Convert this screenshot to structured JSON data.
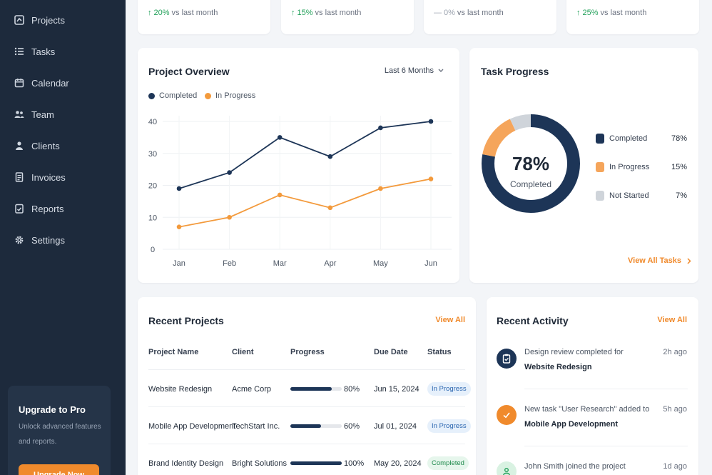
{
  "sidebar": {
    "items": [
      {
        "label": "Projects",
        "icon": "projects-icon"
      },
      {
        "label": "Tasks",
        "icon": "tasks-icon"
      },
      {
        "label": "Calendar",
        "icon": "calendar-icon"
      },
      {
        "label": "Team",
        "icon": "team-icon"
      },
      {
        "label": "Clients",
        "icon": "clients-icon"
      },
      {
        "label": "Invoices",
        "icon": "invoices-icon"
      },
      {
        "label": "Reports",
        "icon": "reports-icon"
      },
      {
        "label": "Settings",
        "icon": "settings-icon"
      }
    ],
    "upgrade": {
      "title": "Upgrade to Pro",
      "text": "Unlock advanced features and reports.",
      "button": "Upgrade Now"
    }
  },
  "stats": [
    {
      "change": "20%",
      "suffix": "vs last month",
      "trend": "up"
    },
    {
      "change": "15%",
      "suffix": "vs last month",
      "trend": "up"
    },
    {
      "change": "0%",
      "suffix": "vs last month",
      "trend": "neutral"
    },
    {
      "change": "25%",
      "suffix": "vs last month",
      "trend": "up"
    }
  ],
  "overview": {
    "title": "Project Overview",
    "range": "Last 6 Months",
    "legend": [
      "Completed",
      "In Progress"
    ]
  },
  "chart_data": {
    "type": "line",
    "x": [
      "Jan",
      "Feb",
      "Mar",
      "Apr",
      "May",
      "Jun"
    ],
    "ylim": [
      0,
      40
    ],
    "yticks": [
      0,
      10,
      20,
      30,
      40
    ],
    "grid": true,
    "legend_position": "top-left",
    "series": [
      {
        "name": "Completed",
        "color": "#1d3557",
        "values": [
          19,
          24,
          35,
          29,
          38,
          40
        ]
      },
      {
        "name": "In Progress",
        "color": "#f39a3c",
        "values": [
          7,
          10,
          17,
          13,
          19,
          22
        ]
      }
    ]
  },
  "task_progress": {
    "title": "Task Progress",
    "center_value": "78%",
    "center_label": "Completed",
    "segments": [
      {
        "label": "Completed",
        "pct": "78%",
        "value": 78,
        "color": "#1d3557"
      },
      {
        "label": "In Progress",
        "pct": "15%",
        "value": 15,
        "color": "#f5a55b"
      },
      {
        "label": "Not Started",
        "pct": "7%",
        "value": 7,
        "color": "#cfd4da"
      }
    ],
    "link": "View All Tasks"
  },
  "recent_projects": {
    "title": "Recent Projects",
    "link": "View All",
    "columns": [
      "Project Name",
      "Client",
      "Progress",
      "Due Date",
      "Status"
    ],
    "rows": [
      {
        "name": "Website Redesign",
        "client": "Acme Corp",
        "progress": "80%",
        "progress_value": 0.8,
        "due": "Jun 15, 2024",
        "status": "In Progress"
      },
      {
        "name": "Mobile App Development",
        "client": "TechStart Inc.",
        "progress": "60%",
        "progress_value": 0.6,
        "due": "Jul 01, 2024",
        "status": "In Progress"
      },
      {
        "name": "Brand Identity Design",
        "client": "Bright Solutions",
        "progress": "100%",
        "progress_value": 1.0,
        "due": "May 20, 2024",
        "status": "Completed"
      }
    ]
  },
  "recent_activity": {
    "title": "Recent Activity",
    "link": "View All",
    "items": [
      {
        "text": "Design review completed for",
        "bold": "Website Redesign",
        "time": "2h ago"
      },
      {
        "text": "New task \"User Research\" added to",
        "bold": "Mobile App Development",
        "time": "5h ago"
      },
      {
        "text": "John Smith joined the project",
        "bold": "",
        "time": "1d ago"
      }
    ]
  }
}
